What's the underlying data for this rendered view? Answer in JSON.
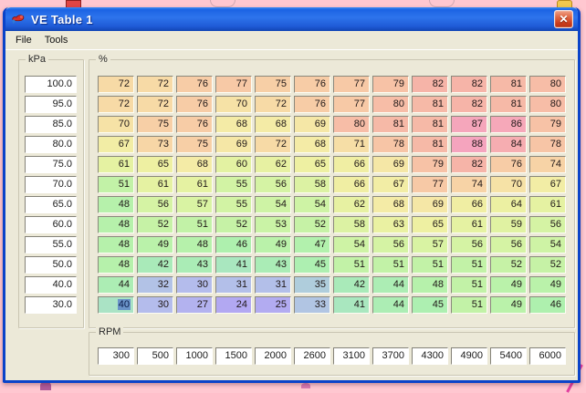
{
  "window": {
    "title": "VE Table 1",
    "close_glyph": "✕"
  },
  "menu": {
    "items": [
      "File",
      "Tools"
    ]
  },
  "kpa_axis": {
    "label": "kPa",
    "values": [
      "100.0",
      "95.0",
      "85.0",
      "80.0",
      "75.0",
      "70.0",
      "65.0",
      "60.0",
      "55.0",
      "50.0",
      "40.0",
      "30.0"
    ]
  },
  "ve_grid": {
    "label": "%"
  },
  "rpm_axis": {
    "label": "RPM",
    "values": [
      "300",
      "500",
      "1000",
      "1500",
      "2000",
      "2600",
      "3100",
      "3700",
      "4300",
      "4900",
      "5400",
      "6000"
    ]
  },
  "selection": {
    "row": 11,
    "col": 0,
    "value": 40
  },
  "heatmap_anchors": [
    {
      "value": 24,
      "color": "#b2a8f2"
    },
    {
      "value": 30,
      "color": "#b4bcec"
    },
    {
      "value": 34,
      "color": "#b0c8e0"
    },
    {
      "value": 38,
      "color": "#aadcd0"
    },
    {
      "value": 42,
      "color": "#a9eab9"
    },
    {
      "value": 46,
      "color": "#aef0ae"
    },
    {
      "value": 50,
      "color": "#bef2a8"
    },
    {
      "value": 55,
      "color": "#d2f3a4"
    },
    {
      "value": 60,
      "color": "#e3f2a2"
    },
    {
      "value": 65,
      "color": "#eef0a2"
    },
    {
      "value": 68,
      "color": "#f4eba6"
    },
    {
      "value": 70,
      "color": "#f6e2a6"
    },
    {
      "value": 73,
      "color": "#f7d6a6"
    },
    {
      "value": 76,
      "color": "#f7cca6"
    },
    {
      "value": 79,
      "color": "#f7c2a6"
    },
    {
      "value": 82,
      "color": "#f6b4a8"
    },
    {
      "value": 85,
      "color": "#f6aab6"
    },
    {
      "value": 88,
      "color": "#f5a4be"
    }
  ],
  "chart_data": {
    "type": "heatmap",
    "title": "VE Table 1",
    "xlabel": "RPM",
    "ylabel": "kPa",
    "values_label": "%",
    "x": [
      300,
      500,
      1000,
      1500,
      2000,
      2600,
      3100,
      3700,
      4300,
      4900,
      5400,
      6000
    ],
    "y": [
      100.0,
      95.0,
      85.0,
      80.0,
      75.0,
      70.0,
      65.0,
      60.0,
      55.0,
      50.0,
      40.0,
      30.0
    ],
    "rows": [
      [
        72,
        72,
        76,
        77,
        75,
        76,
        77,
        79,
        82,
        82,
        81,
        80
      ],
      [
        72,
        72,
        76,
        70,
        72,
        76,
        77,
        80,
        81,
        82,
        81,
        80
      ],
      [
        70,
        75,
        76,
        68,
        68,
        69,
        80,
        81,
        81,
        87,
        86,
        79
      ],
      [
        67,
        73,
        75,
        69,
        72,
        68,
        71,
        78,
        81,
        88,
        84,
        78
      ],
      [
        61,
        65,
        68,
        60,
        62,
        65,
        66,
        69,
        79,
        82,
        76,
        74
      ],
      [
        51,
        61,
        61,
        55,
        56,
        58,
        66,
        67,
        77,
        74,
        70,
        67
      ],
      [
        48,
        56,
        57,
        55,
        54,
        54,
        62,
        68,
        69,
        66,
        64,
        61
      ],
      [
        48,
        52,
        51,
        52,
        53,
        52,
        58,
        63,
        65,
        61,
        59,
        56
      ],
      [
        48,
        49,
        48,
        46,
        49,
        47,
        54,
        56,
        57,
        56,
        56,
        54
      ],
      [
        48,
        42,
        43,
        41,
        43,
        45,
        51,
        51,
        51,
        51,
        52,
        52
      ],
      [
        44,
        32,
        30,
        31,
        31,
        35,
        42,
        44,
        48,
        51,
        49,
        49
      ],
      [
        40,
        30,
        27,
        24,
        25,
        33,
        41,
        44,
        45,
        51,
        49,
        46
      ]
    ]
  }
}
